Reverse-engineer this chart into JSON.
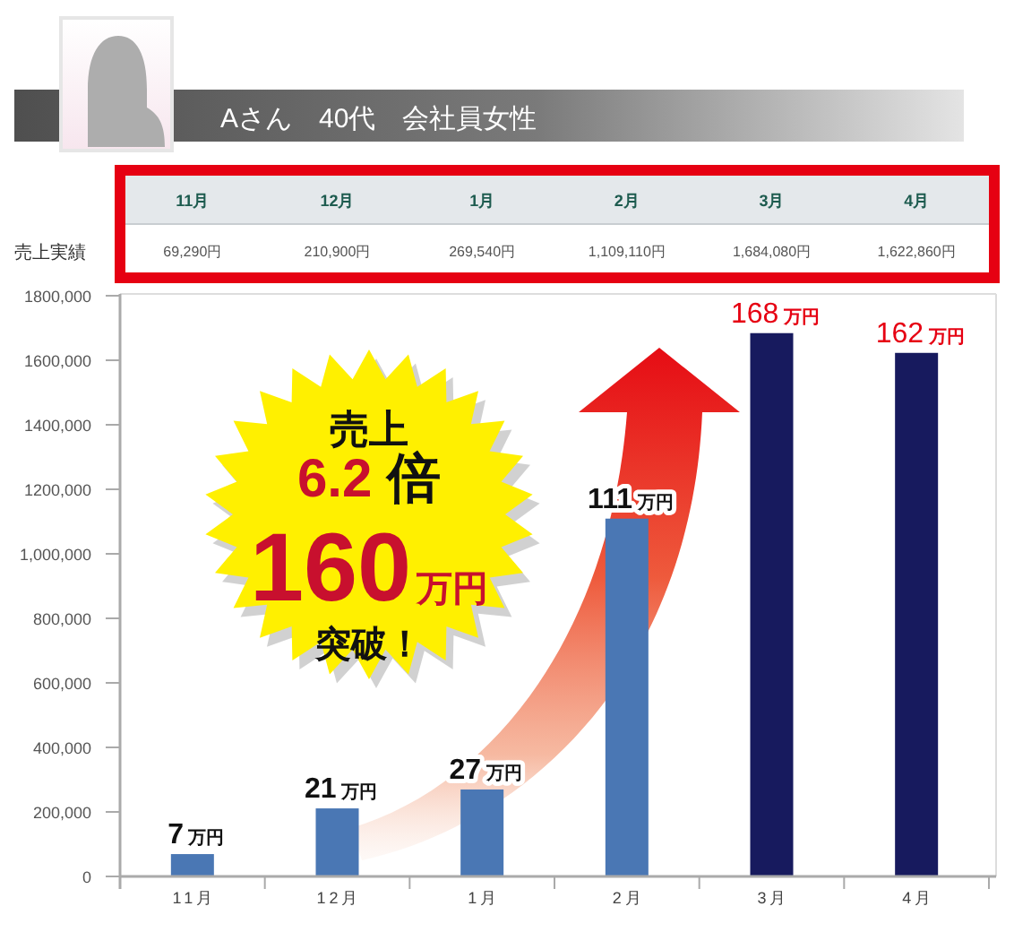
{
  "chart_data": {
    "type": "bar",
    "title": "Aさん　40代　会社員女性",
    "categories": [
      "11月",
      "12月",
      "1月",
      "2月",
      "3月",
      "4月"
    ],
    "values": [
      69290,
      210900,
      269540,
      1109110,
      1684080,
      1622860
    ],
    "colors": [
      "#4a77b4",
      "#4a77b4",
      "#4a77b4",
      "#4a77b4",
      "#171a5e",
      "#171a5e"
    ],
    "value_labels": [
      "69,290円",
      "210,900円",
      "269,540円",
      "1,109,110円",
      "1,684,080円",
      "1,622,860円"
    ],
    "ylim": [
      0,
      1800000
    ],
    "yticks": [
      0,
      {
        "value": 200000,
        "label": "200,000"
      },
      {
        "value": 400000,
        "label": "400,000"
      },
      {
        "value": 600000,
        "label": "600,000"
      },
      {
        "value": 800000,
        "label": "800,000"
      },
      {
        "value": 1000000,
        "label": "1,000,000"
      },
      {
        "value": 1200000,
        "label": "1200,000"
      },
      {
        "value": 1400000,
        "label": "1400,000"
      },
      {
        "value": 1600000,
        "label": "1600,000"
      },
      {
        "value": 1800000,
        "label": "1800,000"
      }
    ],
    "annotations": [
      "売上実績",
      {
        "text": "7 万円",
        "x": "11月",
        "y": 69290
      },
      {
        "text": "21 万円",
        "x": "12月",
        "y": 210900
      },
      {
        "text": "27 万円",
        "x": "1月",
        "y": 269540
      },
      {
        "text": "111 万円",
        "x": "2月",
        "y": 1109110
      },
      {
        "text": "168 万円",
        "x": "3月",
        "y": 1684080
      },
      {
        "text": "162 万円",
        "x": "4月",
        "y": 1622860
      },
      "売上",
      "6.2 倍",
      "160万円",
      "突破！"
    ]
  }
}
